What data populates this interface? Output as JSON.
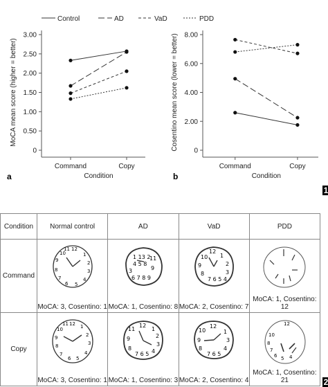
{
  "chart_data": [
    {
      "type": "line",
      "panel_letter": "a",
      "categories": [
        "Command",
        "Copy"
      ],
      "xlabel": "Condition",
      "ylabel": "MoCA mean score (higher = better)",
      "ylim": [
        0,
        3.0
      ],
      "yticks": [
        "0",
        "0.50",
        "1.00",
        "1.50",
        "2.00",
        "2.50",
        "3.00"
      ],
      "ytick_values": [
        0,
        0.5,
        1.0,
        1.5,
        2.0,
        2.5,
        3.0
      ],
      "series": [
        {
          "name": "Control",
          "values": [
            2.33,
            2.57
          ],
          "dash": "solid"
        },
        {
          "name": "AD",
          "values": [
            1.67,
            2.55
          ],
          "dash": "longdash"
        },
        {
          "name": "VaD",
          "values": [
            1.48,
            2.05
          ],
          "dash": "dashed"
        },
        {
          "name": "PDD",
          "values": [
            1.33,
            1.62
          ],
          "dash": "dotted"
        }
      ]
    },
    {
      "type": "line",
      "panel_letter": "b",
      "categories": [
        "Command",
        "Copy"
      ],
      "xlabel": "Condition",
      "ylabel": "Cosentino mean score (lower = better)",
      "ylim": [
        0,
        8.0
      ],
      "yticks": [
        "0",
        "2.00",
        "4.00",
        "6.00",
        "8.00"
      ],
      "ytick_values": [
        0,
        2,
        4,
        6,
        8
      ],
      "series": [
        {
          "name": "Control",
          "values": [
            2.6,
            1.75
          ],
          "dash": "solid"
        },
        {
          "name": "AD",
          "values": [
            4.95,
            2.25
          ],
          "dash": "longdash"
        },
        {
          "name": "VaD",
          "values": [
            7.65,
            6.7
          ],
          "dash": "dashed"
        },
        {
          "name": "PDD",
          "values": [
            6.8,
            7.3
          ],
          "dash": "dotted"
        }
      ]
    }
  ],
  "legend": [
    {
      "label": "Control",
      "dash": "solid"
    },
    {
      "label": "AD",
      "dash": "longdash"
    },
    {
      "label": "VaD",
      "dash": "dashed"
    },
    {
      "label": "PDD",
      "dash": "dotted"
    }
  ],
  "figure_numbers": {
    "first": "1",
    "second": "2"
  },
  "table": {
    "corner": "Condition",
    "columns": [
      "Normal control",
      "AD",
      "VaD",
      "PDD"
    ],
    "rows": [
      {
        "label": "Command",
        "captions": [
          "MoCA: 3, Cosentino: 1",
          "MoCA: 1, Cosentino: 8",
          "MoCA: 2, Cosentino: 7",
          "MoCA: 1, Cosentino: 12"
        ]
      },
      {
        "label": "Copy",
        "captions": [
          "MoCA: 3, Cosentino: 1",
          "MoCA: 1, Cosentino: 3",
          "MoCA: 2, Cosentino: 4",
          "MoCA: 1, Cosentino: 21"
        ]
      }
    ]
  },
  "colors": {
    "line": "#333333",
    "axis": "#555555",
    "border": "#888888"
  }
}
